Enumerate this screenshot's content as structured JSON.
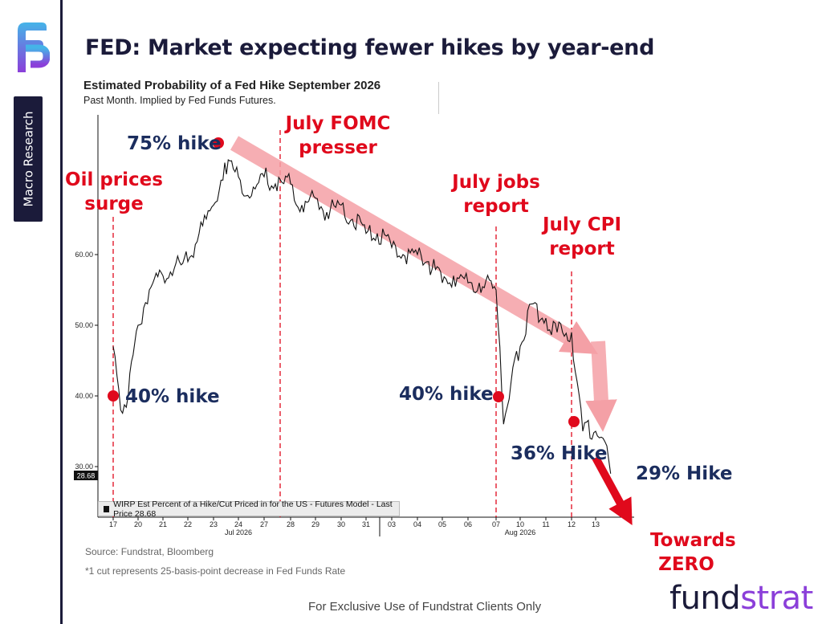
{
  "slide": {
    "title": "FED: Market expecting fewer hikes by year-end",
    "side_tab": "Macro Research",
    "source": "Source: Fundstrat, Bloomberg",
    "footnote": "*1 cut represents 25-basis-point decrease in Fed Funds Rate",
    "disclaimer": "For Exclusive Use of Fundstrat Clients Only",
    "brand_part1": "fund",
    "brand_part2": "strat",
    "colors": {
      "navy": "#1b2d5e",
      "red": "#e0091c",
      "purple": "#8b3fd9",
      "arrow": "#f4a0a6"
    }
  },
  "chart_data": {
    "type": "line",
    "title": "Estimated Probability of a Fed Hike September 2026",
    "subtitle": "Past Month. Implied by Fed Funds Futures.",
    "legend": "WIRP Est Percent of a Hike/Cut Priced in for the US - Futures Model - Last Price 28.68",
    "last_price_label": "28.68",
    "ylim": [
      22,
      77
    ],
    "y_ticks": [
      {
        "value": 30,
        "label": "30.00"
      },
      {
        "value": 40,
        "label": "40.00"
      },
      {
        "value": 50,
        "label": "50.00"
      },
      {
        "value": 60,
        "label": "60.00"
      }
    ],
    "x_ticks": [
      "17",
      "20",
      "21",
      "22",
      "23",
      "24",
      "27",
      "28",
      "29",
      "30",
      "31",
      "03",
      "04",
      "05",
      "06",
      "07",
      "10",
      "11",
      "12",
      "13"
    ],
    "month_labels": [
      {
        "label": "Jul 2026",
        "at": "24"
      },
      {
        "label": "Aug 2026",
        "at": "10"
      }
    ],
    "series": [
      {
        "points": [
          [
            "17",
            47
          ],
          [
            "17",
            38
          ],
          [
            "17",
            40
          ],
          [
            "20",
            50
          ],
          [
            "20",
            55
          ],
          [
            "21",
            57
          ],
          [
            "21",
            58
          ],
          [
            "22",
            59
          ],
          [
            "22",
            63
          ],
          [
            "23",
            67
          ],
          [
            "23",
            73
          ],
          [
            "24",
            71
          ],
          [
            "24",
            68
          ],
          [
            "27",
            71
          ],
          [
            "27",
            70
          ],
          [
            "28",
            70
          ],
          [
            "28",
            67
          ],
          [
            "29",
            68
          ],
          [
            "29",
            66
          ],
          [
            "30",
            67
          ],
          [
            "30",
            65
          ],
          [
            "31",
            63
          ],
          [
            "31",
            63
          ],
          [
            "03",
            61
          ],
          [
            "03",
            60
          ],
          [
            "04",
            60
          ],
          [
            "04",
            59
          ],
          [
            "05",
            56
          ],
          [
            "05",
            57
          ],
          [
            "06",
            56
          ],
          [
            "06",
            56
          ],
          [
            "07",
            55
          ],
          [
            "07",
            36
          ],
          [
            "07",
            42
          ],
          [
            "10",
            47
          ],
          [
            "10",
            53
          ],
          [
            "11",
            51
          ],
          [
            "11",
            49
          ],
          [
            "12",
            49
          ],
          [
            "12",
            35
          ],
          [
            "13",
            35
          ],
          [
            "13",
            34
          ],
          [
            "13",
            29
          ]
        ]
      }
    ],
    "event_lines": [
      {
        "at": "17",
        "label_line1": "Oil prices",
        "label_line2": "surge"
      },
      {
        "at": "27.5",
        "label_line1": "July FOMC",
        "label_line2": "presser"
      },
      {
        "at": "07",
        "label_line1": "July jobs",
        "label_line2": "report"
      },
      {
        "at": "12",
        "label_line1": "July CPI",
        "label_line2": "report"
      }
    ],
    "annotations": [
      {
        "text": "75% hike",
        "at": "23",
        "value": 75
      },
      {
        "text": "40% hike",
        "at": "17",
        "value": 40
      },
      {
        "text": "40% hike",
        "at": "07",
        "value": 40
      },
      {
        "text": "36% Hike",
        "at": "12",
        "value": 36.5
      },
      {
        "text": "29% Hike",
        "at": "13",
        "value": 29
      }
    ],
    "towards_line1": "Towards",
    "towards_line2": "ZERO"
  }
}
